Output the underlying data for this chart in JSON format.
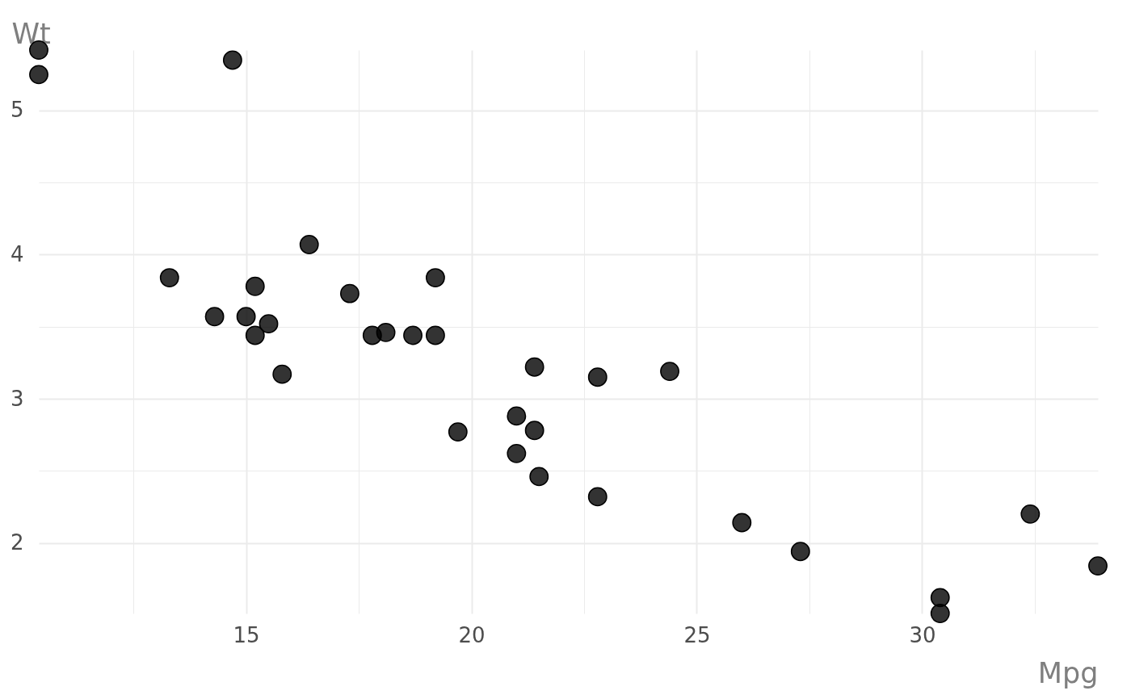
{
  "chart_data": {
    "type": "scatter",
    "xlabel": "Mpg",
    "ylabel": "Wt",
    "x": [
      21.0,
      21.0,
      22.8,
      21.4,
      18.7,
      18.1,
      14.3,
      24.4,
      22.8,
      19.2,
      17.8,
      16.4,
      17.3,
      15.2,
      10.4,
      10.4,
      14.7,
      32.4,
      30.4,
      33.9,
      21.5,
      15.5,
      15.2,
      13.3,
      19.2,
      27.3,
      26.0,
      30.4,
      15.8,
      19.7,
      15.0,
      21.4
    ],
    "values": [
      2.62,
      2.88,
      2.32,
      3.22,
      3.44,
      3.46,
      3.57,
      3.19,
      3.15,
      3.44,
      3.44,
      4.07,
      3.73,
      3.78,
      5.25,
      5.42,
      5.35,
      2.2,
      1.62,
      1.84,
      2.46,
      3.52,
      3.44,
      3.84,
      3.84,
      1.94,
      2.14,
      1.51,
      3.17,
      2.77,
      3.57,
      2.78
    ],
    "color": "#000000",
    "marker": "circle",
    "xlim": [
      10.4,
      33.9
    ],
    "ylim": [
      1.51,
      5.42
    ],
    "xticks": [
      {
        "value": 12.5,
        "label": null
      },
      15,
      {
        "value": 17.5,
        "label": null
      },
      20,
      {
        "value": 22.5,
        "label": null
      },
      25,
      {
        "value": 27.5,
        "label": null
      },
      30,
      {
        "value": 32.5,
        "label": null
      }
    ],
    "yticks": [
      2,
      {
        "value": 2.5,
        "label": null
      },
      3,
      {
        "value": 3.5,
        "label": null
      },
      4,
      {
        "value": 4.5,
        "label": null
      },
      5
    ],
    "grid": true
  }
}
